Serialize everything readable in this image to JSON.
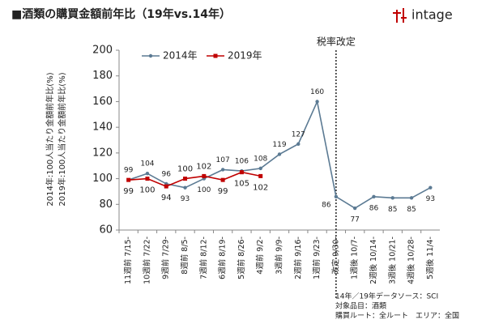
{
  "header": {
    "title": "■酒類の購買金額前年比（19年vs.14年）",
    "logo": "intage"
  },
  "chart_data": {
    "type": "line",
    "ylabel": [
      "2014年:100人当たり金額前年比(%)",
      "2019年:100人当たり金額前年比(%)"
    ],
    "categories": [
      "11週前 7/15-",
      "10週前 7/22-",
      "9週前 7/29-",
      "8週前 8/5-",
      "7週前 8/12-",
      "6週前 8/19-",
      "5週前 8/26-",
      "4週前 9/2-",
      "3週前 9/9-",
      "2週前 9/16-",
      "1週前 9/23-",
      "改定 9/30-",
      "1週後 10/7-",
      "2週後 10/14-",
      "3週後 10/21-",
      "4週後 10/28-",
      "5週後 11/4-"
    ],
    "series": [
      {
        "name": "2014年",
        "color": "#5b7a93",
        "values": [
          99,
          104,
          96,
          93,
          100,
          107,
          106,
          108,
          119,
          127,
          160,
          86,
          77,
          86,
          85,
          85,
          93
        ]
      },
      {
        "name": "2019年",
        "color": "#c00000",
        "values": [
          99,
          100,
          94,
          100,
          102,
          99,
          105,
          102,
          null,
          null,
          null,
          null,
          null,
          null,
          null,
          null,
          null
        ]
      }
    ],
    "ylim": [
      60,
      200
    ],
    "yticks": [
      60,
      80,
      100,
      120,
      140,
      160,
      180,
      200
    ],
    "legend": "top-left",
    "annotation": "税率改定",
    "notes": [
      "14年／19年データソース：SCI",
      "対象品目：酒類",
      "購買ルート：全ルート　エリア：全国"
    ]
  }
}
